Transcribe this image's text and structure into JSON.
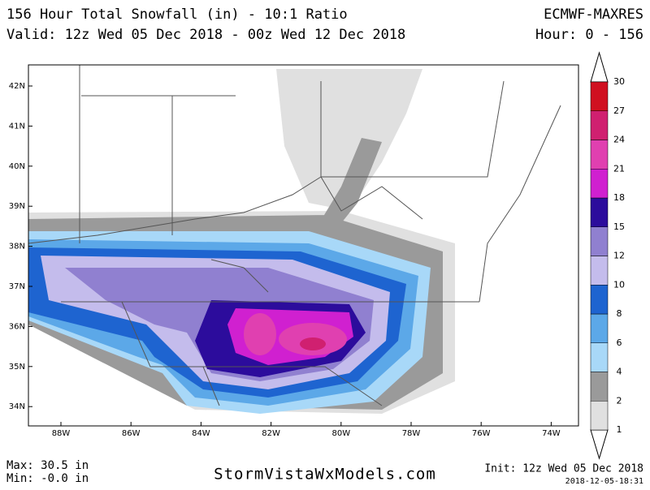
{
  "header": {
    "title": "156 Hour Total Snowfall (in) - 10:1 Ratio",
    "valid": "Valid: 12z Wed 05 Dec 2018 - 00z Wed 12 Dec 2018",
    "model": "ECMWF-MAXRES",
    "hours": "Hour: 0 - 156"
  },
  "map": {
    "lat_labels": [
      "42N",
      "41N",
      "40N",
      "39N",
      "38N",
      "37N",
      "36N",
      "35N",
      "34N"
    ],
    "lon_labels": [
      "88W",
      "86W",
      "84W",
      "82W",
      "80W",
      "78W",
      "76W",
      "74W"
    ]
  },
  "colorbar": {
    "levels": [
      1,
      2,
      4,
      6,
      8,
      10,
      12,
      15,
      18,
      21,
      24,
      27,
      30
    ],
    "colors": [
      "#e0e0e0",
      "#9a9a9a",
      "#a8d8f8",
      "#5ca8e8",
      "#1e64d0",
      "#c4bcec",
      "#9080d0",
      "#2c0c9c",
      "#d020d0",
      "#e040b0",
      "#d02070",
      "#d01020"
    ]
  },
  "footer": {
    "max": "Max: 30.5 in",
    "min": "Min: -0.0 in",
    "site": "StormVistaWxModels.com",
    "init": "Init: 12z Wed 05 Dec 2018",
    "timestamp": "2018-12-05-18:31"
  }
}
